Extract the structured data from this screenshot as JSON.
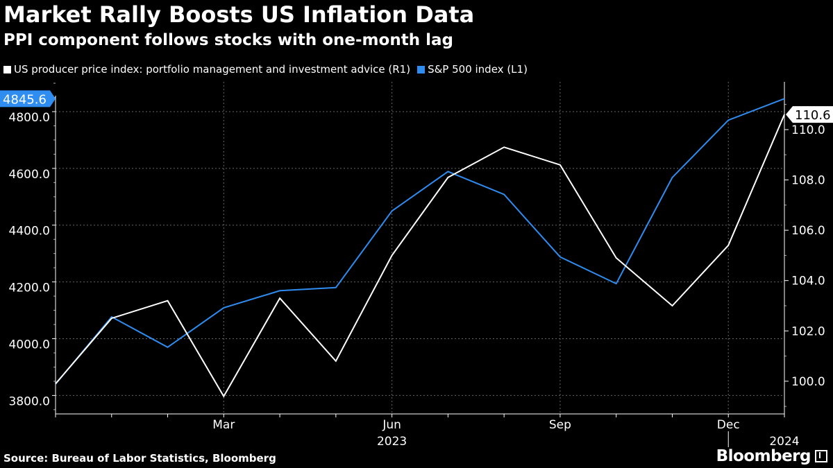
{
  "header": {
    "title": "Market Rally Boosts US Inflation Data",
    "subtitle": "PPI component follows stocks with one-month lag"
  },
  "legend": [
    {
      "label": "US producer price index: portfolio management and investment advice (R1)",
      "color": "#ffffff"
    },
    {
      "label": "S&P 500 index (L1)",
      "color": "#2f8cf0"
    }
  ],
  "footer": {
    "source": "Source: Bureau of Labor Statistics, Bloomberg",
    "brand": "Bloomberg"
  },
  "chart_data": {
    "type": "line",
    "title": "Market Rally Boosts US Inflation Data",
    "subtitle": "PPI component follows stocks with one-month lag",
    "x": [
      "2022-12",
      "2023-01",
      "2023-02",
      "2023-03",
      "2023-04",
      "2023-05",
      "2023-06",
      "2023-07",
      "2023-08",
      "2023-09",
      "2023-10",
      "2023-11",
      "2023-12",
      "2024-01"
    ],
    "x_tick_labels": [
      {
        "index": 3,
        "label": "Mar"
      },
      {
        "index": 6,
        "label": "Jun"
      },
      {
        "index": 9,
        "label": "Sep"
      },
      {
        "index": 12,
        "label": "Dec"
      }
    ],
    "year_labels": [
      {
        "index": 6,
        "label": "2023"
      },
      {
        "index": 13,
        "label": "2024"
      }
    ],
    "y_left": {
      "range": [
        3735,
        4905
      ],
      "ticks": [
        3800,
        4000,
        4200,
        4400,
        4600,
        4800
      ],
      "tick_labels": [
        "3800.0",
        "4000.0",
        "4200.0",
        "4400.0",
        "4600.0",
        "4800.0"
      ]
    },
    "y_right": {
      "range": [
        98.7,
        111.9
      ],
      "ticks": [
        100,
        102,
        104,
        106,
        108,
        110
      ],
      "tick_labels": [
        "100.0",
        "102.0",
        "104.0",
        "106.0",
        "108.0",
        "110.0"
      ]
    },
    "series": [
      {
        "name": "S&P 500 index (L1)",
        "axis": "left",
        "color": "#2f8cf0",
        "values": [
          3840,
          4077,
          3970,
          4109,
          4169,
          4180,
          4450,
          4589,
          4508,
          4288,
          4194,
          4568,
          4770,
          4845.6
        ],
        "last_label": "4845.6"
      },
      {
        "name": "US producer price index: portfolio management and investment advice (R1)",
        "axis": "right",
        "color": "#ffffff",
        "values": [
          99.9,
          102.5,
          103.2,
          99.4,
          103.3,
          100.8,
          105.0,
          108.1,
          109.3,
          108.6,
          104.9,
          103.0,
          105.4,
          110.6
        ],
        "last_label": "110.6"
      }
    ],
    "grid": true
  }
}
